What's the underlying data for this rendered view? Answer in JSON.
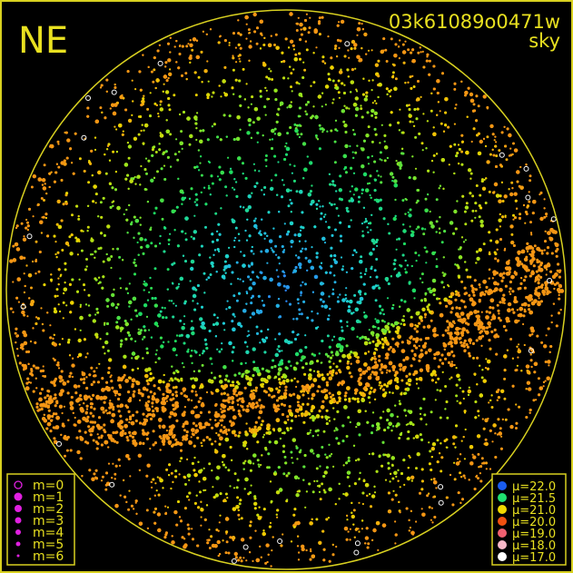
{
  "title": {
    "corner": "NE",
    "image_id": "03k61089o0471w",
    "mode": "sky"
  },
  "colors": {
    "frame": "#d8d020",
    "text": "#e8e020",
    "magnitude_marker": "#e020e0"
  },
  "chart_data": {
    "type": "scatter",
    "projection": "all-sky circle",
    "magnitude_legend": {
      "placement": "bottom-left",
      "entries": [
        {
          "label": "m=0",
          "marker": "open-circle"
        },
        {
          "label": "m=1",
          "marker": "dot"
        },
        {
          "label": "m=2",
          "marker": "dot"
        },
        {
          "label": "m=3",
          "marker": "dot"
        },
        {
          "label": "m=4",
          "marker": "dot"
        },
        {
          "label": "m=5",
          "marker": "dot"
        },
        {
          "label": "m=6",
          "marker": "dot"
        }
      ]
    },
    "mu_legend": {
      "placement": "bottom-right",
      "entries": [
        {
          "label": "μ=22.0",
          "value": 22.0,
          "color": "#1a5cf0"
        },
        {
          "label": "μ=21.5",
          "value": 21.5,
          "color": "#20e070"
        },
        {
          "label": "μ=21.0",
          "value": 21.0,
          "color": "#f0d800"
        },
        {
          "label": "μ=20.0",
          "value": 20.0,
          "color": "#f05010"
        },
        {
          "label": "μ=19.0",
          "value": 19.0,
          "color": "#f06070"
        },
        {
          "label": "μ=18.0",
          "value": 18.0,
          "color": "#f8b8c8"
        },
        {
          "label": "μ=17.0",
          "value": 17.0,
          "color": "#ffffff"
        }
      ]
    }
  }
}
